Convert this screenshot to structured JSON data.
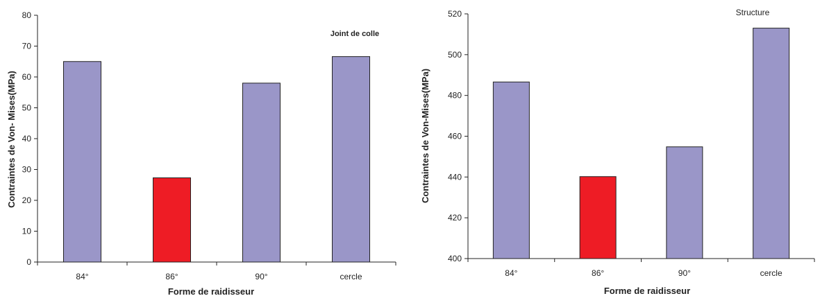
{
  "chart_data": [
    {
      "type": "bar",
      "categories": [
        "84°",
        "86°",
        "90°",
        "cercle"
      ],
      "values": [
        65,
        27.3,
        58,
        66.6
      ],
      "colors": [
        "#9a96c8",
        "#ee1c25",
        "#9a96c8",
        "#9a96c8"
      ],
      "annotation": "Joint de colle",
      "xlabel": "Forme de raidisseur",
      "ylabel": "Contraintes de Von- Mises(MPa)",
      "ylim": [
        0,
        80
      ],
      "yticks": [
        "0",
        "10",
        "20",
        "30",
        "40",
        "50",
        "60",
        "70",
        "80"
      ],
      "grid": false
    },
    {
      "type": "bar",
      "categories": [
        "84°",
        "86°",
        "90°",
        "cercle"
      ],
      "values": [
        486.6,
        440.2,
        454.8,
        513
      ],
      "colors": [
        "#9a96c8",
        "#ee1c25",
        "#9a96c8",
        "#9a96c8"
      ],
      "annotation": "Structure",
      "xlabel": "Forme de raidisseur",
      "ylabel": "Contraintes de Von-Mises(MPa)",
      "ylim": [
        400,
        520
      ],
      "yticks": [
        "400",
        "420",
        "440",
        "460",
        "480",
        "500",
        "520"
      ],
      "grid": false
    }
  ]
}
